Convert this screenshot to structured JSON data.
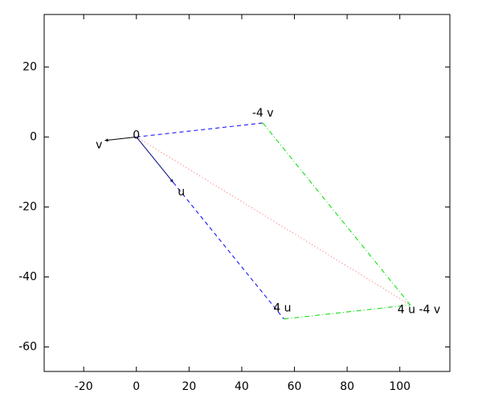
{
  "chart_data": {
    "type": "vector",
    "xlim": [
      -35,
      119
    ],
    "ylim": [
      -67,
      35
    ],
    "xticks": [
      -20,
      0,
      20,
      40,
      60,
      80,
      100
    ],
    "yticks": [
      -60,
      -40,
      -20,
      0,
      20
    ],
    "vectors": [
      {
        "x": [
          0,
          14
        ],
        "y": [
          0,
          -13
        ],
        "color": "#000080",
        "style": "solid",
        "head": true
      },
      {
        "x": [
          0,
          -12
        ],
        "y": [
          0,
          -1
        ],
        "color": "#000000",
        "style": "solid",
        "head": true
      },
      {
        "x": [
          0,
          48
        ],
        "y": [
          0,
          4
        ],
        "color": "#0000ff",
        "style": "dashed",
        "head": false
      },
      {
        "x": [
          14,
          56
        ],
        "y": [
          -13,
          -52
        ],
        "color": "#0000ff",
        "style": "dashed",
        "head": false
      },
      {
        "x": [
          48,
          104
        ],
        "y": [
          4,
          -48
        ],
        "color": "#00dd00",
        "style": "dashdot",
        "head": false
      },
      {
        "x": [
          56,
          104
        ],
        "y": [
          -52,
          -48
        ],
        "color": "#00dd00",
        "style": "dashdot",
        "head": false
      },
      {
        "x": [
          0,
          104
        ],
        "y": [
          0,
          -48
        ],
        "color": "#ff6060",
        "style": "dotted",
        "head": false
      }
    ],
    "points": [
      {
        "label": "0",
        "x": 0,
        "y": 0
      },
      {
        "label": "v",
        "x": -12,
        "y": -1
      },
      {
        "label": "u",
        "x": 14,
        "y": -13
      },
      {
        "label": "-4 v",
        "x": 48,
        "y": 4
      },
      {
        "label": "4 u",
        "x": 56,
        "y": -52
      },
      {
        "label": "4 u -4 v",
        "x": 104,
        "y": -48
      }
    ]
  }
}
